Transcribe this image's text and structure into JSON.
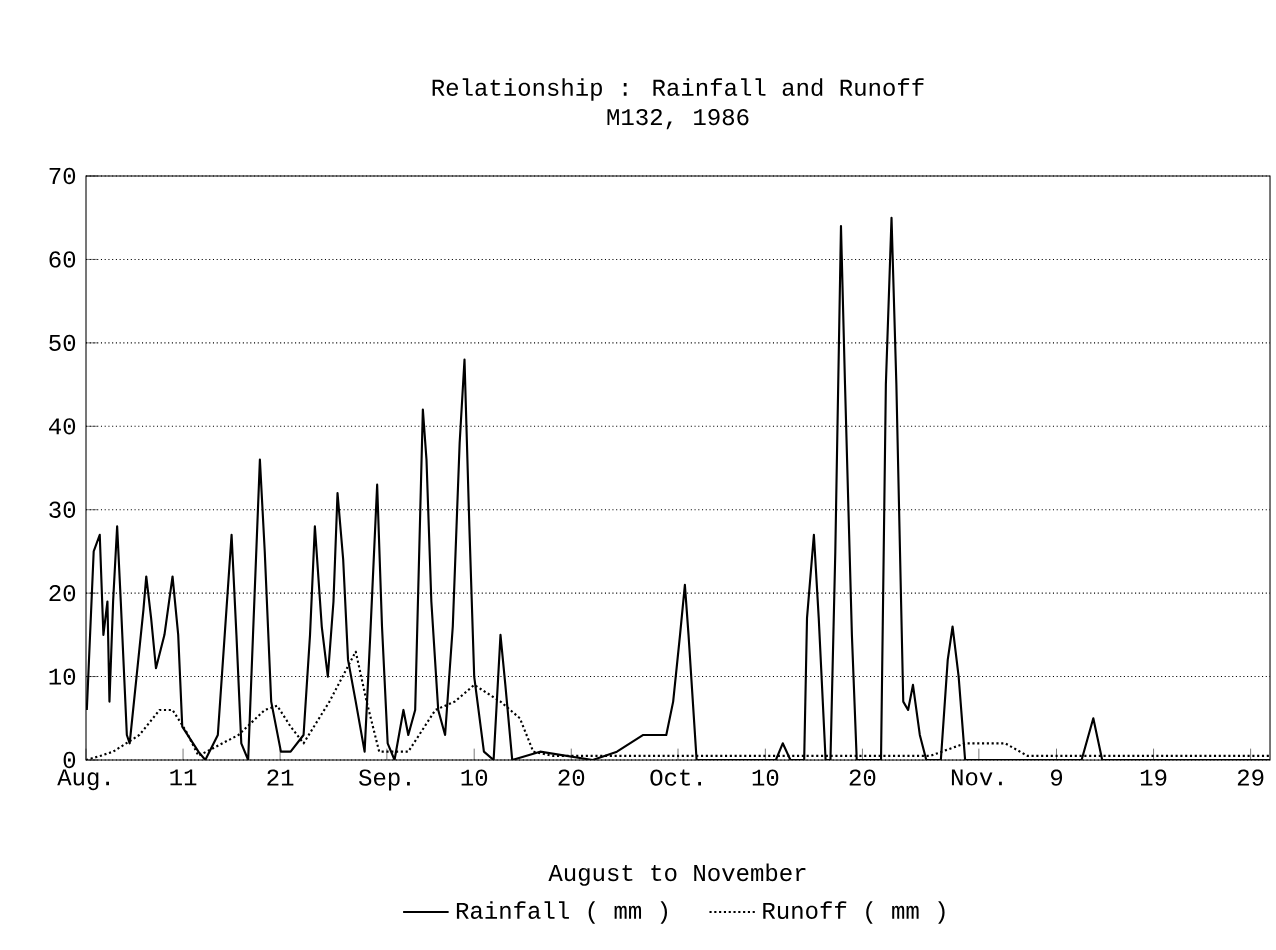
{
  "chart_data": {
    "type": "line",
    "title": "Relationship : Rainfall and Runoff",
    "subtitle": "M132, 1986",
    "xlabel": "August to November",
    "xlim": [
      "1986-08-01",
      "1986-12-01"
    ],
    "ylim": [
      0,
      70
    ],
    "xticks": [
      {
        "value": "1986-08-01",
        "label": "Aug."
      },
      {
        "value": "1986-08-11",
        "label": "11"
      },
      {
        "value": "1986-08-21",
        "label": "21"
      },
      {
        "value": "1986-09-01",
        "label": "Sep."
      },
      {
        "value": "1986-09-10",
        "label": "10"
      },
      {
        "value": "1986-09-20",
        "label": "20"
      },
      {
        "value": "1986-10-01",
        "label": "Oct."
      },
      {
        "value": "1986-10-10",
        "label": "10"
      },
      {
        "value": "1986-10-20",
        "label": "20"
      },
      {
        "value": "1986-11-01",
        "label": "Nov."
      },
      {
        "value": "1986-11-09",
        "label": "9"
      },
      {
        "value": "1986-11-19",
        "label": "19"
      },
      {
        "value": "1986-11-29",
        "label": "29"
      }
    ],
    "yticks": [
      0,
      10,
      20,
      30,
      40,
      50,
      60,
      70
    ],
    "grid": "y",
    "legend": "bottom",
    "series": [
      {
        "name": "Rainfall ( mm )",
        "color": "#000000",
        "line_style": "solid",
        "x": [
          "1986-08-01T02:00",
          "1986-08-01T19:00",
          "1986-08-02T10:00",
          "1986-08-02T19:00",
          "1986-08-03T05:00",
          "1986-08-03T10:00",
          "1986-08-03T19:00",
          "1986-08-04T05:00",
          "1986-08-04T14:00",
          "1986-08-05T05:00",
          "1986-08-05T12:00",
          "1986-08-06T05:00",
          "1986-08-06T22:00",
          "1986-08-07T05:00",
          "1986-08-07T17:00",
          "1986-08-08T05:00",
          "1986-08-09T02:00",
          "1986-08-09T22:00",
          "1986-08-10T12:00",
          "1986-08-10T22:00",
          "1986-08-12T14:00",
          "1986-08-13T07:00",
          "1986-08-14T14:00",
          "1986-08-15T07:00",
          "1986-08-16T00:00",
          "1986-08-16T12:00",
          "1986-08-17T00:00",
          "1986-08-17T17:00",
          "1986-08-18T05:00",
          "1986-08-18T22:00",
          "1986-08-19T10:00",
          "1986-08-20T02:00",
          "1986-08-21T02:00",
          "1986-08-22T02:00",
          "1986-08-23T10:00",
          "1986-08-24T02:00",
          "1986-08-24T14:00",
          "1986-08-25T07:00",
          "1986-08-25T22:00",
          "1986-08-26T12:00",
          "1986-08-26T22:00",
          "1986-08-27T12:00",
          "1986-08-28T00:00",
          "1986-08-28T19:00",
          "1986-08-29T17:00",
          "1986-08-30T07:00",
          "1986-08-31T00:00",
          "1986-08-31T12:00",
          "1986-09-01T02:00",
          "1986-09-01T19:00",
          "1986-09-02T17:00",
          "1986-09-03T05:00",
          "1986-09-03T22:00",
          "1986-09-04T17:00",
          "1986-09-05T02:00",
          "1986-09-05T14:00",
          "1986-09-06T07:00",
          "1986-09-07T00:00",
          "1986-09-07T19:00",
          "1986-09-08T12:00",
          "1986-09-09T00:00",
          "1986-09-09T12:00",
          "1986-09-10T00:00",
          "1986-09-11T00:00",
          "1986-09-12T00:00",
          "1986-09-12T17:00",
          "1986-09-13T05:00",
          "1986-09-13T22:00",
          "1986-09-16T19:00",
          "1986-09-22T05:00",
          "1986-09-24T17:00",
          "1986-09-27T10:00",
          "1986-09-28T10:00",
          "1986-09-29T19:00",
          "1986-09-30T12:00",
          "1986-10-01T05:00",
          "1986-10-01T17:00",
          "1986-10-02T02:00",
          "1986-10-02T22:00",
          "1986-10-11T02:00",
          "1986-10-11T19:00",
          "1986-10-12T14:00",
          "1986-10-14T00:00",
          "1986-10-14T07:00",
          "1986-10-15T00:00",
          "1986-10-15T12:00",
          "1986-10-16T05:00",
          "1986-10-16T17:00",
          "1986-10-17T05:00",
          "1986-10-17T19:00",
          "1986-10-18T05:00",
          "1986-10-18T22:00",
          "1986-10-19T10:00",
          "1986-10-21T22:00",
          "1986-10-22T10:00",
          "1986-10-23T00:00",
          "1986-10-23T12:00",
          "1986-10-24T05:00",
          "1986-10-24T17:00",
          "1986-10-25T05:00",
          "1986-10-25T22:00",
          "1986-10-26T14:00",
          "1986-10-28T02:00",
          "1986-10-28T19:00",
          "1986-10-29T07:00",
          "1986-10-29T22:00",
          "1986-10-30T14:00",
          "1986-11-11T14:00",
          "1986-11-12T19:00",
          "1986-11-13T17:00",
          "1986-12-01T00:00"
        ],
        "values": [
          6,
          25,
          27,
          15,
          19,
          7,
          19,
          28,
          19,
          3,
          2,
          10,
          18,
          22,
          17,
          11,
          15,
          22,
          15,
          4,
          1,
          0,
          3,
          15,
          27,
          15,
          2,
          0,
          15,
          36,
          25,
          7,
          1,
          1,
          3,
          15,
          28,
          16,
          10,
          19,
          32,
          24,
          12,
          7,
          1,
          15,
          33,
          16,
          2,
          0,
          6,
          3,
          6,
          42,
          36,
          19,
          6,
          3,
          16,
          38,
          48,
          28,
          10,
          1,
          0,
          15,
          9,
          0,
          1,
          0,
          1,
          3,
          3,
          3,
          7,
          15,
          21,
          15,
          0,
          0,
          2,
          0,
          0,
          17,
          27,
          17,
          0,
          0,
          25,
          64,
          45,
          15,
          0,
          0,
          45,
          65,
          45,
          7,
          6,
          9,
          3,
          0,
          0,
          12,
          16,
          10,
          0,
          0,
          5,
          0,
          0
        ]
      },
      {
        "name": "Runoff ( mm )",
        "color": "#000000",
        "line_style": "dotted",
        "x": [
          "1986-08-01T00:00",
          "1986-08-02T12:00",
          "1986-08-03T19:00",
          "1986-08-06T12:00",
          "1986-08-08T14:00",
          "1986-08-09T22:00",
          "1986-08-11T07:00",
          "1986-08-12T14:00",
          "1986-08-16T17:00",
          "1986-08-19T10:00",
          "1986-08-20T17:00",
          "1986-08-22T02:00",
          "1986-08-23T10:00",
          "1986-08-26T02:00",
          "1986-08-28T19:00",
          "1986-08-29T22:00",
          "1986-08-31T05:00",
          "1986-09-03T05:00",
          "1986-09-06T00:00",
          "1986-09-08T00:00",
          "1986-09-10T00:00",
          "1986-09-12T17:00",
          "1986-09-14T17:00",
          "1986-09-16T02:00",
          "1986-09-18T02:00",
          "1986-10-27T00:00",
          "1986-10-30T14:00",
          "1986-11-03T17:00",
          "1986-11-06T00:00",
          "1986-12-01T00:00"
        ],
        "values": [
          0,
          0.5,
          1,
          3,
          6,
          6,
          3.5,
          0.5,
          3,
          6,
          6.5,
          4,
          2,
          7,
          13,
          7,
          1,
          1,
          6,
          7,
          9,
          7,
          5,
          1,
          0.5,
          0.5,
          2,
          2,
          0.5,
          0.5
        ]
      }
    ]
  }
}
